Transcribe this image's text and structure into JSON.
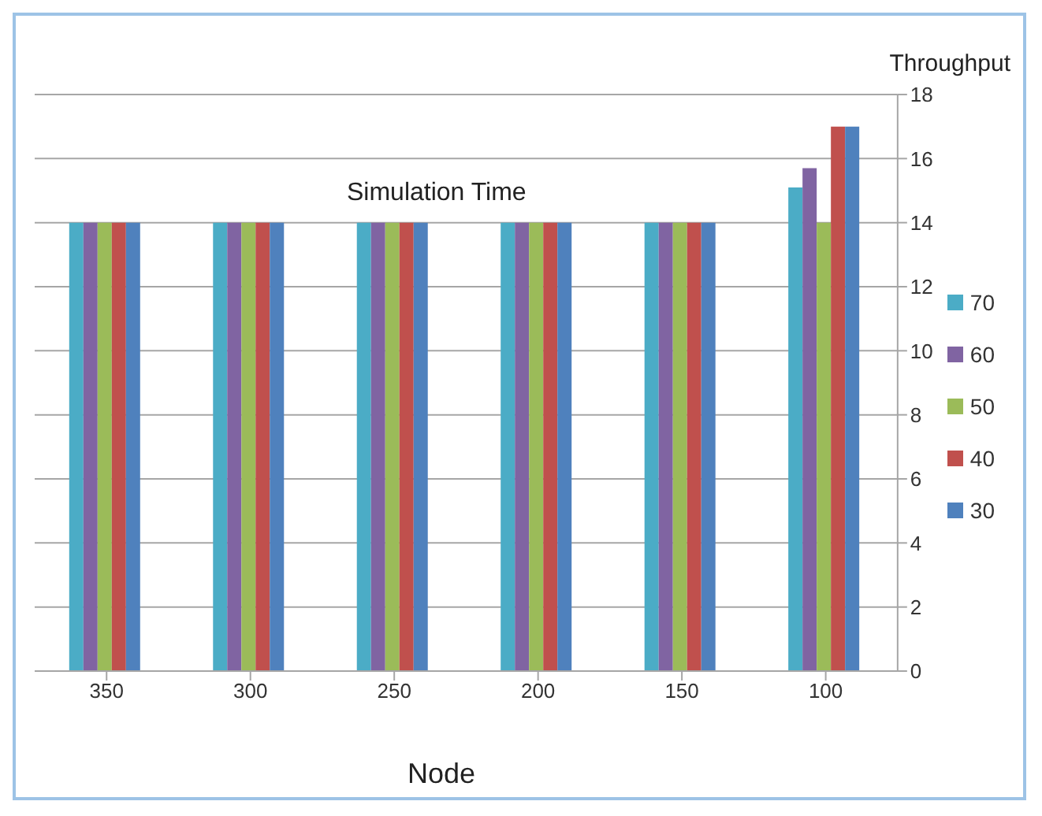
{
  "chart_data": {
    "type": "bar",
    "title": "Simulation Time",
    "xlabel": "Node",
    "ylabel": "Throughput",
    "categories": [
      "350",
      "300",
      "250",
      "200",
      "150",
      "100"
    ],
    "series": [
      {
        "name": "70",
        "color": "#4bacc6",
        "values": [
          14,
          14,
          14,
          14,
          14,
          15.1
        ]
      },
      {
        "name": "60",
        "color": "#8064a2",
        "values": [
          14,
          14,
          14,
          14,
          14,
          15.7
        ]
      },
      {
        "name": "50",
        "color": "#9bbb59",
        "values": [
          14,
          14,
          14,
          14,
          14,
          14
        ]
      },
      {
        "name": "40",
        "color": "#c0504d",
        "values": [
          14,
          14,
          14,
          14,
          14,
          17
        ]
      },
      {
        "name": "30",
        "color": "#4f81bd",
        "values": [
          14,
          14,
          14,
          14,
          14,
          17
        ]
      }
    ],
    "ylim": [
      0,
      18
    ],
    "yticks": [
      0,
      2,
      4,
      6,
      8,
      10,
      12,
      14,
      16,
      18
    ],
    "grid": "y",
    "legend": "right"
  }
}
